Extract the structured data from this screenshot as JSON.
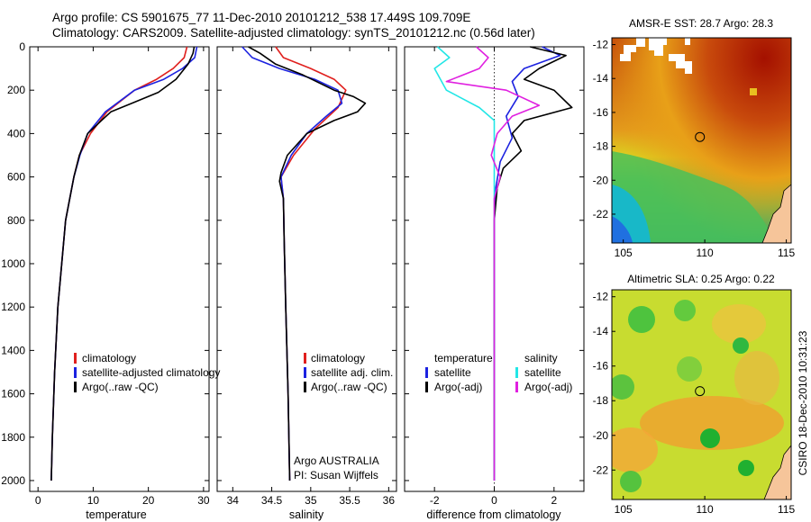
{
  "title": {
    "line1": "Argo profile: CS 5901675_77 11-Dec-2010 20101212_538 17.449S 109.709E",
    "line2": "Climatology: CARS2009. Satellite-adjusted climatology: synTS_20101212.nc (0.56d later)"
  },
  "credit": "CSIRO 18-Dec-2010 10:31:23",
  "colors": {
    "climatology": "#e0201e",
    "satellite": "#1c22e0",
    "argo": "#000000",
    "salinity_satellite": "#22e6e6",
    "salinity_argo": "#e020e0"
  },
  "chart_data": [
    {
      "type": "line",
      "name": "temperature-panel",
      "xlabel": "temperature",
      "ylabel": "",
      "xlim": [
        -1.5,
        31
      ],
      "ylim": [
        2050,
        0
      ],
      "xticks": [
        "0",
        "10",
        "20",
        "30"
      ],
      "xtick_values": [
        0,
        10,
        20,
        30
      ],
      "yticks": [
        "0",
        "200",
        "400",
        "600",
        "800",
        "1000",
        "1200",
        "1400",
        "1600",
        "1800",
        "2000"
      ],
      "ytick_values": [
        0,
        200,
        400,
        600,
        800,
        1000,
        1200,
        1400,
        1600,
        1800,
        2000
      ],
      "legend_location": "lower-middle",
      "series": [
        {
          "name": "climatology",
          "color": "#e0201e",
          "x": [
            27.0,
            26.5,
            24.5,
            21.5,
            17.5,
            12.5,
            9.5,
            7.5,
            6.5,
            5.0,
            4.3,
            3.6,
            3.0,
            2.6,
            2.4
          ],
          "y": [
            0,
            50,
            100,
            150,
            200,
            300,
            400,
            500,
            600,
            800,
            1000,
            1200,
            1500,
            1800,
            2000
          ]
        },
        {
          "name": "satellite-adjusted climatology",
          "color": "#1c22e0",
          "x": [
            28.8,
            28.4,
            26.2,
            22.8,
            17.5,
            12.2,
            9.0,
            7.6,
            6.5,
            5.0,
            4.3,
            3.6,
            3.0,
            2.6,
            2.4
          ],
          "y": [
            0,
            50,
            100,
            150,
            200,
            300,
            400,
            500,
            600,
            800,
            1000,
            1200,
            1500,
            1800,
            2000
          ]
        },
        {
          "name": "Argo(..raw -QC)",
          "color": "#000000",
          "x": [
            28.3,
            28.1,
            27.2,
            25.0,
            21.8,
            17.0,
            13.2,
            11.5,
            9.0,
            7.5,
            6.5,
            5.0,
            4.3,
            3.6,
            3.0,
            2.6,
            2.4
          ],
          "y": [
            0,
            30,
            80,
            150,
            210,
            260,
            300,
            340,
            400,
            500,
            600,
            800,
            1000,
            1200,
            1500,
            1800,
            2000
          ]
        }
      ],
      "legend": [
        {
          "label": "climatology",
          "color": "#e0201e"
        },
        {
          "label": "satellite-adjusted climatology",
          "color": "#1c22e0"
        },
        {
          "label": "Argo(..raw -QC)",
          "color": "#000000"
        }
      ]
    },
    {
      "type": "line",
      "name": "salinity-panel",
      "xlabel": "salinity",
      "xlim": [
        33.8,
        36.1
      ],
      "ylim": [
        2050,
        0
      ],
      "xticks": [
        "34",
        "34.5",
        "35",
        "35.5",
        "36"
      ],
      "xtick_values": [
        34,
        34.5,
        35,
        35.5,
        36
      ],
      "legend_location": "lower-right",
      "series": [
        {
          "name": "climatology",
          "color": "#e0201e",
          "x": [
            34.55,
            34.65,
            35.0,
            35.3,
            35.45,
            35.35,
            35.05,
            34.78,
            34.62,
            34.65,
            34.66,
            34.68,
            34.71,
            34.73
          ],
          "y": [
            0,
            50,
            100,
            150,
            200,
            280,
            380,
            500,
            600,
            700,
            900,
            1200,
            1600,
            2000
          ]
        },
        {
          "name": "satellite adj. clim.",
          "color": "#1c22e0",
          "x": [
            34.12,
            34.25,
            34.6,
            35.05,
            35.35,
            35.4,
            35.2,
            34.95,
            34.75,
            34.62,
            34.65,
            34.66,
            34.68,
            34.71,
            34.73
          ],
          "y": [
            0,
            50,
            100,
            150,
            200,
            260,
            320,
            400,
            500,
            600,
            700,
            900,
            1200,
            1600,
            2000
          ]
        },
        {
          "name": "Argo(..raw -QC)",
          "color": "#000000",
          "x": [
            34.2,
            34.35,
            34.55,
            34.9,
            35.3,
            35.55,
            35.7,
            35.6,
            35.3,
            34.95,
            34.7,
            34.62,
            34.6,
            34.65,
            34.66,
            34.68,
            34.71,
            34.73
          ],
          "y": [
            0,
            30,
            80,
            130,
            200,
            230,
            260,
            300,
            340,
            400,
            500,
            580,
            620,
            700,
            900,
            1200,
            1600,
            2000
          ]
        }
      ],
      "legend": [
        {
          "label": "climatology",
          "color": "#e0201e"
        },
        {
          "label": "satellite adj. clim.",
          "color": "#1c22e0"
        },
        {
          "label": "Argo(..raw -QC)",
          "color": "#000000"
        }
      ],
      "annotation": {
        "line1": "Argo AUSTRALIA",
        "line2": "PI: Susan Wijffels"
      }
    },
    {
      "type": "line",
      "name": "difference-panel",
      "xlabel": "difference from climatology",
      "xlim": [
        -3.0,
        3.0
      ],
      "ylim": [
        2050,
        0
      ],
      "xticks": [
        "-2",
        "0",
        "2"
      ],
      "xtick_values": [
        -2,
        0,
        2
      ],
      "zero_line": true,
      "legend_location": "lower-middle",
      "legend_headers": [
        "temperature",
        "salinity"
      ],
      "series": [
        {
          "name": "temperature satellite",
          "color": "#1c22e0",
          "x": [
            1.6,
            2.2,
            1.0,
            0.6,
            0.8,
            0.4,
            0.6,
            0.2,
            0.05,
            0.0,
            0.0,
            0.0
          ],
          "y": [
            0,
            40,
            100,
            160,
            230,
            320,
            420,
            530,
            650,
            800,
            1200,
            2000
          ]
        },
        {
          "name": "temperature Argo(-adj)",
          "color": "#000000",
          "x": [
            1.2,
            2.4,
            1.5,
            1.0,
            2.0,
            2.6,
            1.0,
            0.6,
            0.9,
            0.3,
            0.1,
            0.0,
            0.0,
            0.0
          ],
          "y": [
            0,
            40,
            100,
            150,
            200,
            280,
            340,
            400,
            480,
            560,
            650,
            800,
            1200,
            2000
          ]
        },
        {
          "name": "salinity satellite",
          "color": "#22e6e6",
          "x": [
            -1.9,
            -1.5,
            -2.0,
            -1.6,
            -0.5,
            0.0,
            0.0,
            0.0,
            0.0
          ],
          "y": [
            0,
            50,
            100,
            200,
            280,
            340,
            600,
            1200,
            2000
          ]
        },
        {
          "name": "salinity Argo(-adj)",
          "color": "#e020e0",
          "x": [
            -0.6,
            -0.2,
            -0.5,
            -1.6,
            0.4,
            1.5,
            0.6,
            0.1,
            -0.1,
            0.2,
            0.0,
            0.0,
            0.0
          ],
          "y": [
            0,
            50,
            100,
            160,
            200,
            270,
            320,
            400,
            500,
            600,
            700,
            1200,
            2000
          ]
        }
      ],
      "legend": [
        {
          "label": "satellite",
          "color": "#1c22e0"
        },
        {
          "label": "Argo(-adj)",
          "color": "#000000"
        },
        {
          "label": "satellite",
          "color": "#22e6e6"
        },
        {
          "label": "Argo(-adj)",
          "color": "#e020e0"
        }
      ]
    },
    {
      "type": "heatmap",
      "name": "sst-map",
      "title": "AMSR-E SST: 28.7 Argo: 28.3",
      "xlim": [
        104.3,
        115.3
      ],
      "ylim": [
        -23.7,
        -11.6
      ],
      "xticks": [
        "105",
        "110",
        "115"
      ],
      "xtick_values": [
        105,
        110,
        115
      ],
      "yticks": [
        "-12",
        "-14",
        "-16",
        "-18",
        "-20",
        "-22"
      ],
      "ytick_values": [
        -12,
        -14,
        -16,
        -18,
        -20,
        -22
      ],
      "marker": {
        "lon": 109.7,
        "lat": -17.45
      }
    },
    {
      "type": "heatmap",
      "name": "sla-map",
      "title": "Altimetric SLA: 0.25 Argo: 0.22",
      "xlim": [
        104.3,
        115.3
      ],
      "ylim": [
        -23.7,
        -11.6
      ],
      "xticks": [
        "105",
        "110",
        "115"
      ],
      "xtick_values": [
        105,
        110,
        115
      ],
      "yticks": [
        "-12",
        "-14",
        "-16",
        "-18",
        "-20",
        "-22"
      ],
      "ytick_values": [
        -12,
        -14,
        -16,
        -18,
        -20,
        -22
      ],
      "marker": {
        "lon": 109.7,
        "lat": -17.45
      }
    }
  ]
}
